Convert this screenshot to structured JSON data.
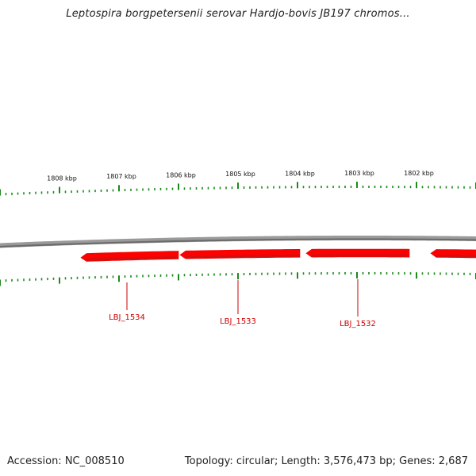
{
  "title": "Leptospira borgpetersenii serovar Hardjo-bovis JB197 chromos...",
  "footer": {
    "accession": "Accession: NC_008510",
    "summary": "Topology: circular; Length: 3,576,473 bp; Genes: 2,687"
  },
  "colors": {
    "backbone": "#7a7a7a",
    "gene": "#ff0000",
    "tick": "#1a8a1a",
    "gene_label": "#cc0000"
  },
  "scale_ticks": [
    {
      "label": "1808 kbp"
    },
    {
      "label": "1807 kbp"
    },
    {
      "label": "1806 kbp"
    },
    {
      "label": "1805 kbp"
    },
    {
      "label": "1804 kbp"
    },
    {
      "label": "1803 kbp"
    },
    {
      "label": "1802 kbp"
    }
  ],
  "genes": [
    {
      "label": "LBJ_1534",
      "strand": "-"
    },
    {
      "label": "LBJ_1533",
      "strand": "-"
    },
    {
      "label": "LBJ_1532",
      "strand": "-"
    },
    {
      "label": "",
      "strand": "-"
    }
  ]
}
